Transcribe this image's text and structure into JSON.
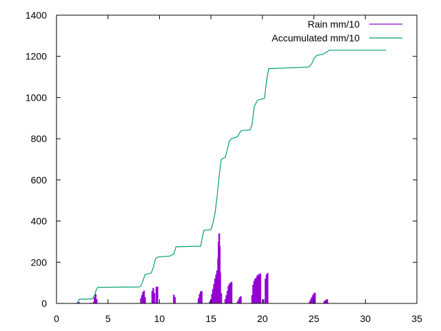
{
  "chart_data": {
    "type": "line",
    "title": "",
    "xlabel": "",
    "ylabel": "",
    "xlim": [
      0,
      35
    ],
    "ylim": [
      0,
      1400
    ],
    "x_ticks": [
      0,
      5,
      10,
      15,
      20,
      25,
      30,
      35
    ],
    "y_ticks": [
      0,
      200,
      400,
      600,
      800,
      1000,
      1200,
      1400
    ],
    "grid": false,
    "legend_position": "top-right",
    "series": [
      {
        "name": "Rain mm/10",
        "style": "impulses",
        "color": "#9400d3",
        "points": [
          [
            2.0,
            3
          ],
          [
            2.1,
            8
          ],
          [
            2.2,
            5
          ],
          [
            3.3,
            3
          ],
          [
            3.6,
            6
          ],
          [
            3.7,
            30
          ],
          [
            3.8,
            45
          ],
          [
            3.9,
            20
          ],
          [
            8.2,
            25
          ],
          [
            8.3,
            40
          ],
          [
            8.4,
            55
          ],
          [
            8.5,
            62
          ],
          [
            8.6,
            30
          ],
          [
            9.3,
            60
          ],
          [
            9.4,
            75
          ],
          [
            9.5,
            50
          ],
          [
            9.7,
            80
          ],
          [
            9.8,
            82
          ],
          [
            11.4,
            42
          ],
          [
            11.5,
            30
          ],
          [
            13.8,
            25
          ],
          [
            13.9,
            45
          ],
          [
            14.0,
            58
          ],
          [
            14.1,
            60
          ],
          [
            14.9,
            10
          ],
          [
            15.0,
            20
          ],
          [
            15.1,
            45
          ],
          [
            15.2,
            70
          ],
          [
            15.3,
            95
          ],
          [
            15.4,
            120
          ],
          [
            15.5,
            140
          ],
          [
            15.6,
            160
          ],
          [
            15.7,
            220
          ],
          [
            15.75,
            300
          ],
          [
            15.8,
            340
          ],
          [
            15.85,
            280
          ],
          [
            15.9,
            150
          ],
          [
            16.0,
            50
          ],
          [
            16.4,
            20
          ],
          [
            16.5,
            40
          ],
          [
            16.6,
            60
          ],
          [
            16.7,
            85
          ],
          [
            16.8,
            95
          ],
          [
            16.9,
            100
          ],
          [
            17.0,
            105
          ],
          [
            17.6,
            10
          ],
          [
            17.7,
            20
          ],
          [
            17.8,
            30
          ],
          [
            17.9,
            35
          ],
          [
            19.0,
            40
          ],
          [
            19.1,
            90
          ],
          [
            19.2,
            110
          ],
          [
            19.3,
            120
          ],
          [
            19.4,
            125
          ],
          [
            19.5,
            135
          ],
          [
            19.6,
            140
          ],
          [
            19.7,
            142
          ],
          [
            19.8,
            145
          ],
          [
            20.1,
            20
          ],
          [
            20.3,
            120
          ],
          [
            20.4,
            140
          ],
          [
            20.5,
            148
          ],
          [
            24.6,
            10
          ],
          [
            24.7,
            20
          ],
          [
            24.8,
            30
          ],
          [
            24.9,
            40
          ],
          [
            25.0,
            48
          ],
          [
            25.1,
            52
          ],
          [
            26.0,
            10
          ],
          [
            26.1,
            15
          ],
          [
            26.2,
            18
          ],
          [
            26.3,
            20
          ]
        ]
      },
      {
        "name": "Accumulated mm/10",
        "style": "line",
        "color": "#009e73",
        "points": [
          [
            2.0,
            0
          ],
          [
            2.1,
            5
          ],
          [
            2.2,
            20
          ],
          [
            3.5,
            22
          ],
          [
            3.7,
            40
          ],
          [
            3.85,
            65
          ],
          [
            4.0,
            78
          ],
          [
            8.0,
            80
          ],
          [
            8.2,
            85
          ],
          [
            8.4,
            110
          ],
          [
            8.6,
            140
          ],
          [
            9.2,
            148
          ],
          [
            9.4,
            175
          ],
          [
            9.6,
            215
          ],
          [
            9.8,
            225
          ],
          [
            11.0,
            230
          ],
          [
            11.4,
            240
          ],
          [
            11.6,
            275
          ],
          [
            14.0,
            278
          ],
          [
            14.3,
            355
          ],
          [
            15.0,
            358
          ],
          [
            15.2,
            390
          ],
          [
            15.4,
            440
          ],
          [
            15.6,
            520
          ],
          [
            15.8,
            620
          ],
          [
            16.0,
            700
          ],
          [
            16.4,
            710
          ],
          [
            16.6,
            750
          ],
          [
            16.8,
            790
          ],
          [
            17.0,
            800
          ],
          [
            17.6,
            810
          ],
          [
            17.8,
            830
          ],
          [
            18.0,
            840
          ],
          [
            18.8,
            842
          ],
          [
            19.0,
            870
          ],
          [
            19.2,
            955
          ],
          [
            19.5,
            985
          ],
          [
            19.7,
            990
          ],
          [
            20.2,
            995
          ],
          [
            20.4,
            1080
          ],
          [
            20.6,
            1140
          ],
          [
            24.5,
            1148
          ],
          [
            24.8,
            1165
          ],
          [
            25.0,
            1190
          ],
          [
            25.3,
            1205
          ],
          [
            25.9,
            1210
          ],
          [
            26.2,
            1220
          ],
          [
            26.5,
            1230
          ],
          [
            32.0,
            1230
          ]
        ]
      }
    ]
  }
}
